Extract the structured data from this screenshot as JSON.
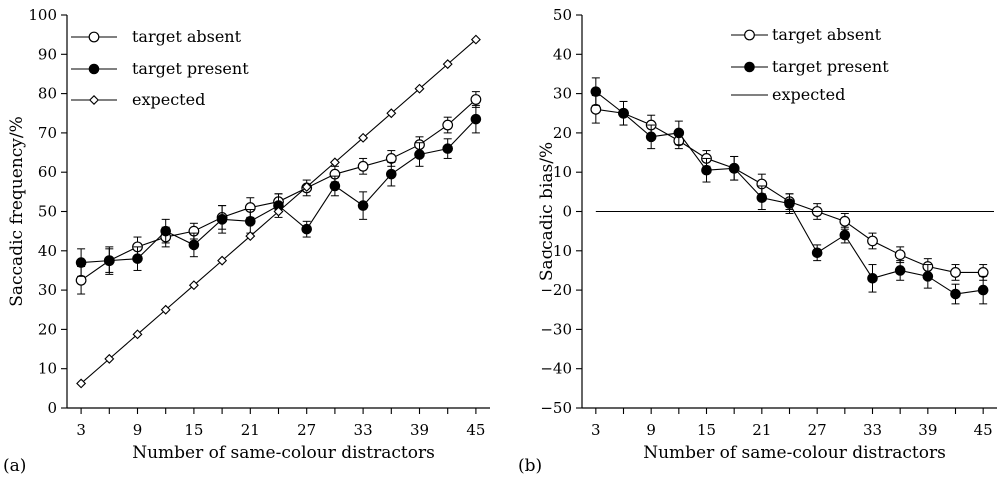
{
  "chart_data": [
    {
      "panel": "(a)",
      "type": "line",
      "xlabel": "Number of same-colour distractors",
      "ylabel": "Saccadic frequency/%",
      "ylim": [
        0,
        100
      ],
      "yticks": [
        0,
        10,
        20,
        30,
        40,
        50,
        60,
        70,
        80,
        90,
        100
      ],
      "xlim": [
        1.5,
        46.5
      ],
      "xticks": [
        3,
        9,
        15,
        21,
        27,
        33,
        39,
        45
      ],
      "x": [
        3,
        6,
        9,
        12,
        15,
        18,
        21,
        24,
        27,
        30,
        33,
        36,
        39,
        42,
        45
      ],
      "legend_position": "top-left",
      "series": [
        {
          "name": "target absent",
          "marker": "open-circle",
          "values": [
            32.5,
            37.5,
            41,
            43.5,
            45,
            48.5,
            51,
            52.5,
            56,
            59.5,
            61.5,
            63.5,
            67,
            72,
            78.5
          ],
          "errors": [
            3.5,
            3,
            2.5,
            2.5,
            2,
            3,
            2.5,
            2,
            2,
            2,
            2,
            2,
            2,
            2,
            2
          ]
        },
        {
          "name": "target present",
          "marker": "filled-circle",
          "values": [
            37,
            37.5,
            38,
            45,
            41.5,
            48,
            47.5,
            51.5,
            45.5,
            56.5,
            51.5,
            59.5,
            64.5,
            66,
            73.5
          ],
          "errors": [
            3.5,
            3.5,
            3,
            3,
            3,
            3.5,
            3,
            3,
            2,
            2.5,
            3.5,
            3,
            3,
            2.5,
            3.5
          ]
        },
        {
          "name": "expected",
          "marker": "open-diamond",
          "values": [
            6.25,
            12.5,
            18.75,
            25,
            31.25,
            37.5,
            43.75,
            50,
            56.25,
            62.5,
            68.75,
            75,
            81.25,
            87.5,
            93.75
          ]
        }
      ]
    },
    {
      "panel": "(b)",
      "type": "line",
      "xlabel": "Number of same-colour distractors",
      "ylabel": "Saccadic bias/%",
      "ylim": [
        -50,
        50
      ],
      "yticks": [
        -50,
        -40,
        -30,
        -20,
        -10,
        0,
        10,
        20,
        30,
        40,
        50
      ],
      "xlim": [
        1.5,
        46.5
      ],
      "xticks": [
        3,
        9,
        15,
        21,
        27,
        33,
        39,
        45
      ],
      "x": [
        3,
        6,
        9,
        12,
        15,
        18,
        21,
        24,
        27,
        30,
        33,
        36,
        39,
        42,
        45
      ],
      "legend_position": "top-center",
      "series": [
        {
          "name": "target absent",
          "marker": "open-circle",
          "values": [
            26,
            25,
            22,
            18,
            13.5,
            11,
            7,
            2.5,
            0,
            -2.5,
            -7.5,
            -11,
            -14,
            -15.5,
            -15.5
          ],
          "errors": [
            3.5,
            3,
            2.5,
            2,
            2,
            3,
            2.5,
            2,
            2,
            2,
            2,
            2,
            2,
            2,
            2
          ]
        },
        {
          "name": "target present",
          "marker": "filled-circle",
          "values": [
            30.5,
            25,
            19,
            20,
            10.5,
            11,
            3.5,
            2,
            -10.5,
            -6,
            -17,
            -15,
            -16.5,
            -21,
            -20
          ],
          "errors": [
            3.5,
            3,
            3,
            3,
            3,
            3,
            3,
            2.5,
            2,
            2,
            3.5,
            2.5,
            3,
            2.5,
            3.5
          ]
        },
        {
          "name": "expected",
          "marker": "none",
          "values": [
            0,
            0,
            0,
            0,
            0,
            0,
            0,
            0,
            0,
            0,
            0,
            0,
            0,
            0,
            0
          ]
        }
      ]
    }
  ]
}
